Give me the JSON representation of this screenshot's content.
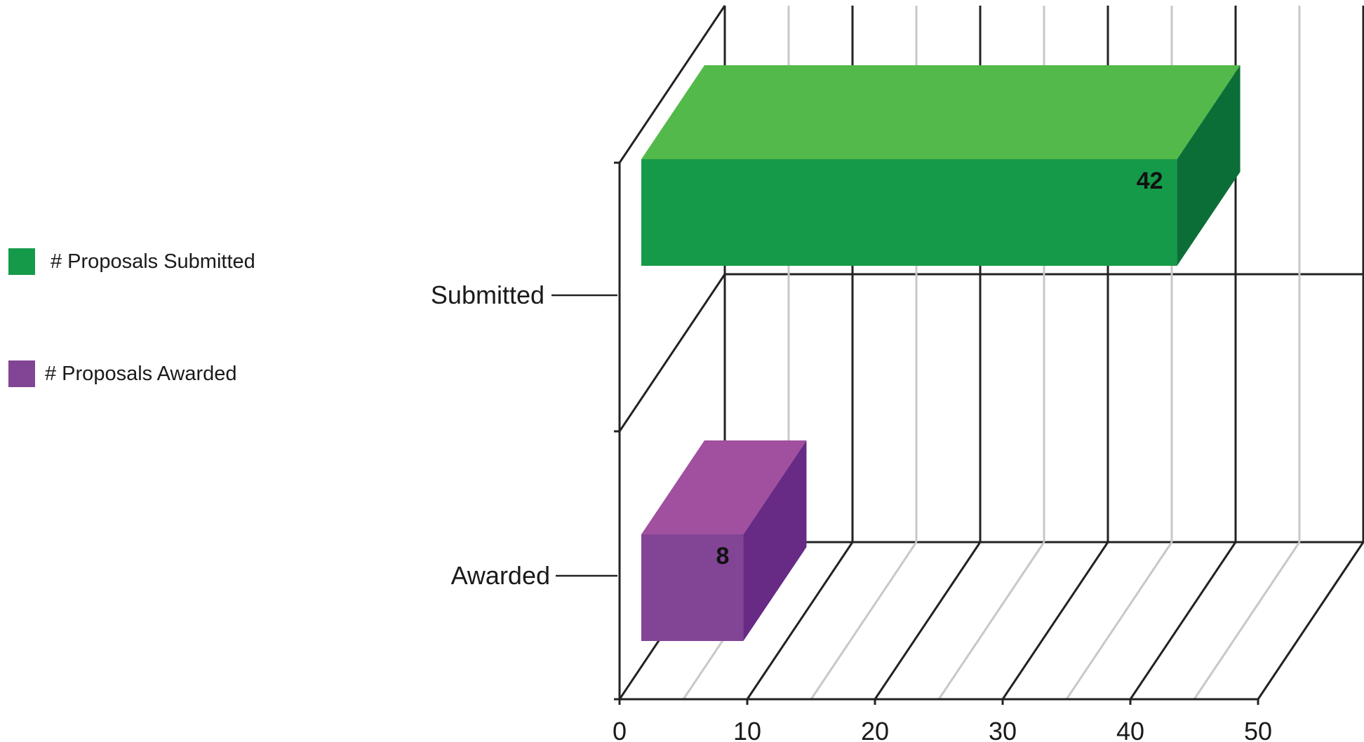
{
  "chart_data": {
    "type": "bar",
    "orientation": "horizontal",
    "three_d": true,
    "categories": [
      "Submitted",
      "Awarded"
    ],
    "series": [
      {
        "name": "# Proposals Submitted",
        "category": "Submitted",
        "value": 42,
        "color": "#159a49",
        "top_color": "#54b94b",
        "side_color": "#0c6e37"
      },
      {
        "name": "# Proposals Awarded",
        "category": "Awarded",
        "value": 8,
        "color": "#824495",
        "top_color": "#a0509e",
        "side_color": "#672a85"
      }
    ],
    "data_labels": [
      "42",
      "8"
    ],
    "xlim": [
      0,
      50
    ],
    "xticks": [
      "0",
      "10",
      "20",
      "30",
      "40",
      "50"
    ],
    "grid": true,
    "legend_position": "left"
  }
}
